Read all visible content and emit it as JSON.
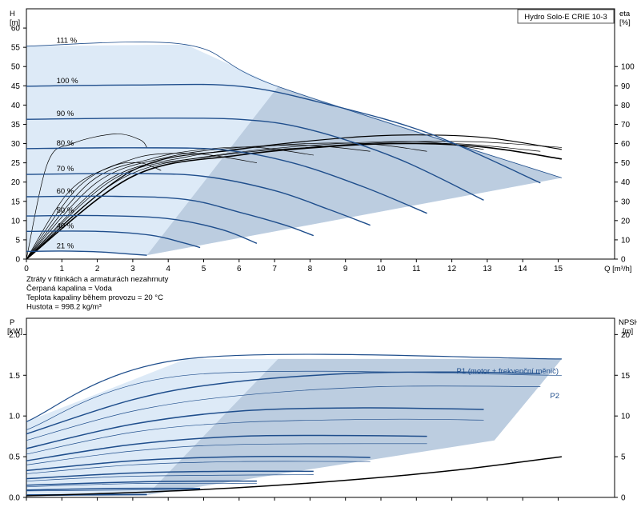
{
  "chart_data": [
    {
      "type": "line",
      "title": "Hydro Solo-E CRIE 10-3",
      "xlabel": "Q [m³/h]",
      "ylabel_left": {
        "line1": "H",
        "line2": "[m]"
      },
      "ylabel_right": {
        "line1": "eta",
        "line2": "[%]"
      },
      "xlim": [
        0,
        16
      ],
      "ylim": [
        0,
        65
      ],
      "ylim_right": [
        0,
        130
      ],
      "x_ticks": [
        0,
        1,
        2,
        3,
        4,
        5,
        6,
        7,
        8,
        9,
        10,
        11,
        12,
        13,
        14,
        15
      ],
      "y_ticks": [
        0,
        5,
        10,
        15,
        20,
        25,
        30,
        35,
        40,
        45,
        50,
        55,
        60
      ],
      "y_ticks_right": [
        0,
        10,
        20,
        30,
        40,
        50,
        60,
        70,
        80,
        90,
        100
      ],
      "speed_curves": [
        {
          "label": "111 %",
          "points": [
            [
              0,
              55.3
            ],
            [
              4.5,
              55.7
            ],
            [
              7.1,
              44.8
            ],
            [
              15.1,
              21.1
            ]
          ]
        },
        {
          "label": "100 %",
          "points": [
            [
              0,
              44.9
            ],
            [
              3,
              45.2
            ],
            [
              6,
              44.9
            ],
            [
              8.5,
              40.2
            ],
            [
              11.4,
              32.5
            ],
            [
              14.5,
              19.8
            ]
          ]
        },
        {
          "label": "90 %",
          "points": [
            [
              0,
              36.3
            ],
            [
              3,
              36.6
            ],
            [
              6,
              36.3
            ],
            [
              8,
              33.6
            ],
            [
              10.5,
              26
            ],
            [
              12.9,
              15.3
            ]
          ]
        },
        {
          "label": "80 %",
          "points": [
            [
              0,
              28.7
            ],
            [
              3,
              28.9
            ],
            [
              5.5,
              28.4
            ],
            [
              7.5,
              25
            ],
            [
              9.5,
              18.8
            ],
            [
              11.3,
              11.9
            ]
          ]
        },
        {
          "label": "70 %",
          "points": [
            [
              0,
              22
            ],
            [
              3,
              22.2
            ],
            [
              5,
              21.5
            ],
            [
              7,
              17.8
            ],
            [
              8.5,
              13
            ],
            [
              9.7,
              8.8
            ]
          ]
        },
        {
          "label": "60 %",
          "points": [
            [
              0,
              16.2
            ],
            [
              2.5,
              16.3
            ],
            [
              4.5,
              15.5
            ],
            [
              6,
              12.2
            ],
            [
              7.3,
              8.8
            ],
            [
              8.1,
              6.1
            ]
          ]
        },
        {
          "label": "50 %",
          "points": [
            [
              0,
              11.2
            ],
            [
              2,
              11.3
            ],
            [
              4,
              10.5
            ],
            [
              5.5,
              7.7
            ],
            [
              6.5,
              4.1
            ]
          ]
        },
        {
          "label": "40 %",
          "points": [
            [
              0,
              7.2
            ],
            [
              2,
              7.2
            ],
            [
              3.5,
              6.2
            ],
            [
              4.4,
              4.3
            ],
            [
              4.9,
              3
            ]
          ]
        },
        {
          "label": "21 %",
          "points": [
            [
              0,
              2
            ],
            [
              1,
              2.1
            ],
            [
              2,
              1.9
            ],
            [
              2.8,
              1.4
            ],
            [
              3.4,
              1
            ]
          ]
        }
      ],
      "efficiency_curves": [
        {
          "name": "eta 21 %",
          "points": [
            [
              0,
              0
            ],
            [
              0.6,
              50
            ],
            [
              1.3,
              60
            ],
            [
              2.5,
              65
            ],
            [
              3.2,
              62
            ],
            [
              3.4,
              58
            ]
          ]
        },
        {
          "name": "eta 40 %",
          "points": [
            [
              0,
              0
            ],
            [
              1.2,
              35
            ],
            [
              2.4,
              48
            ],
            [
              3.2,
              50
            ],
            [
              3.8,
              46
            ]
          ]
        },
        {
          "name": "eta 50 %",
          "points": [
            [
              0,
              0
            ],
            [
              1.5,
              38
            ],
            [
              3,
              52
            ],
            [
              4.2,
              55
            ],
            [
              5.2,
              54
            ],
            [
              6.5,
              50
            ]
          ]
        },
        {
          "name": "eta 60 %",
          "points": [
            [
              0,
              0
            ],
            [
              1.8,
              40
            ],
            [
              3.5,
              52
            ],
            [
              5,
              57
            ],
            [
              6.5,
              58
            ],
            [
              8.1,
              54
            ]
          ]
        },
        {
          "name": "eta 70 %",
          "points": [
            [
              0,
              0
            ],
            [
              2,
              40
            ],
            [
              4,
              53
            ],
            [
              6,
              58
            ],
            [
              8,
              59
            ],
            [
              9.7,
              56
            ]
          ]
        },
        {
          "name": "eta 80 %",
          "points": [
            [
              0,
              0
            ],
            [
              2.3,
              41
            ],
            [
              4.5,
              53
            ],
            [
              7,
              59
            ],
            [
              9.5,
              60
            ],
            [
              11.3,
              56
            ]
          ]
        },
        {
          "name": "eta 90 %",
          "points": [
            [
              0,
              0
            ],
            [
              2.5,
              42
            ],
            [
              5,
              53
            ],
            [
              8,
              59
            ],
            [
              11,
              61
            ],
            [
              12.9,
              57
            ]
          ]
        },
        {
          "name": "eta 100 %",
          "points": [
            [
              0,
              0
            ],
            [
              2.7,
              42
            ],
            [
              5.5,
              54
            ],
            [
              9,
              59
            ],
            [
              12,
              60
            ],
            [
              14.5,
              56
            ]
          ]
        },
        {
          "name": "eta 111 %",
          "points": [
            [
              0,
              0
            ],
            [
              3,
              43
            ],
            [
              6,
              54
            ],
            [
              9.5,
              60
            ],
            [
              12.5,
              61
            ],
            [
              15.1,
              58
            ]
          ]
        }
      ],
      "efficiency_max_curve": [
        [
          0,
          0
        ],
        [
          3,
          43
        ],
        [
          6,
          54
        ],
        [
          9,
          59
        ],
        [
          11,
          60
        ],
        [
          13,
          58
        ],
        [
          15.1,
          52
        ]
      ],
      "efficiency_top_curve": [
        [
          0,
          0
        ],
        [
          3,
          46
        ],
        [
          6,
          57
        ],
        [
          9,
          63
        ],
        [
          11,
          64.5
        ],
        [
          13,
          63
        ],
        [
          15.1,
          57
        ]
      ],
      "annotations": [
        "Ztráty v fitinkách a armaturách nezahrnuty",
        "Čerpaná kapalina = Voda",
        "Teplota kapaliny během provozu = 20 °C",
        "Hustota = 998.2 kg/m³"
      ]
    },
    {
      "type": "line",
      "title": "",
      "xlabel": "",
      "ylabel_left": {
        "line1": "P",
        "line2": "[kW]"
      },
      "ylabel_right": {
        "line1": "NPSH",
        "line2": "[m]"
      },
      "xlim": [
        0,
        16
      ],
      "ylim": [
        0,
        2.2
      ],
      "ylim_right": [
        0,
        22
      ],
      "y_ticks": [
        0,
        0.5,
        1.0,
        1.5,
        2.0
      ],
      "y_tick_labels": [
        "0.0",
        "0.5",
        "1.0",
        "1.5",
        "2.0"
      ],
      "y_ticks_right": [
        0,
        5,
        10,
        15,
        20
      ],
      "series_labels": [
        "P1 (motor + frekvenční měnič)",
        "P2"
      ],
      "p1_curves": [
        {
          "speed": "111 %",
          "points": [
            [
              0,
              0.93
            ],
            [
              4.5,
              1.7
            ],
            [
              15.1,
              1.7
            ]
          ]
        },
        {
          "speed": "100 %",
          "points": [
            [
              0,
              0.78
            ],
            [
              3,
              1.2
            ],
            [
              5.5,
              1.4
            ],
            [
              9,
              1.52
            ],
            [
              12,
              1.54
            ],
            [
              14.5,
              1.52
            ]
          ]
        },
        {
          "speed": "90 %",
          "points": [
            [
              0,
              0.6
            ],
            [
              3,
              0.9
            ],
            [
              6,
              1.06
            ],
            [
              9.5,
              1.1
            ],
            [
              12.9,
              1.08
            ]
          ]
        },
        {
          "speed": "80 %",
          "points": [
            [
              0,
              0.45
            ],
            [
              3,
              0.65
            ],
            [
              6,
              0.75
            ],
            [
              9,
              0.76
            ],
            [
              11.3,
              0.75
            ]
          ]
        },
        {
          "speed": "70 %",
          "points": [
            [
              0,
              0.33
            ],
            [
              3,
              0.45
            ],
            [
              6,
              0.5
            ],
            [
              8.5,
              0.5
            ],
            [
              9.7,
              0.49
            ]
          ]
        },
        {
          "speed": "60 %",
          "points": [
            [
              0,
              0.23
            ],
            [
              3,
              0.3
            ],
            [
              5.5,
              0.32
            ],
            [
              8.1,
              0.32
            ]
          ]
        },
        {
          "speed": "50 %",
          "points": [
            [
              0,
              0.15
            ],
            [
              3,
              0.19
            ],
            [
              5,
              0.2
            ],
            [
              6.5,
              0.2
            ]
          ]
        },
        {
          "speed": "40 %",
          "points": [
            [
              0,
              0.09
            ],
            [
              2.5,
              0.11
            ],
            [
              4.9,
              0.11
            ]
          ]
        },
        {
          "speed": "21 %",
          "points": [
            [
              0,
              0.03
            ],
            [
              2,
              0.035
            ],
            [
              3.4,
              0.035
            ]
          ]
        }
      ],
      "p2_curves": [
        {
          "speed": "111 %",
          "points": [
            [
              0,
              0.83
            ],
            [
              4.5,
              1.5
            ],
            [
              15.1,
              1.5
            ]
          ]
        },
        {
          "speed": "100 %",
          "points": [
            [
              0,
              0.7
            ],
            [
              3,
              1.06
            ],
            [
              6,
              1.25
            ],
            [
              10,
              1.36
            ],
            [
              14.5,
              1.36
            ]
          ]
        },
        {
          "speed": "90 %",
          "points": [
            [
              0,
              0.53
            ],
            [
              3,
              0.8
            ],
            [
              6,
              0.92
            ],
            [
              10,
              0.96
            ],
            [
              12.9,
              0.95
            ]
          ]
        },
        {
          "speed": "80 %",
          "points": [
            [
              0,
              0.4
            ],
            [
              3,
              0.57
            ],
            [
              6,
              0.65
            ],
            [
              11.3,
              0.66
            ]
          ]
        },
        {
          "speed": "70 %",
          "points": [
            [
              0,
              0.29
            ],
            [
              3,
              0.4
            ],
            [
              6,
              0.44
            ],
            [
              9.7,
              0.44
            ]
          ]
        },
        {
          "speed": "60 %",
          "points": [
            [
              0,
              0.2
            ],
            [
              3,
              0.26
            ],
            [
              8.1,
              0.28
            ]
          ]
        },
        {
          "speed": "50 %",
          "points": [
            [
              0,
              0.13
            ],
            [
              3,
              0.17
            ],
            [
              6.5,
              0.17
            ]
          ]
        },
        {
          "speed": "40 %",
          "points": [
            [
              0,
              0.08
            ],
            [
              4.9,
              0.1
            ]
          ]
        },
        {
          "speed": "21 %",
          "points": [
            [
              0,
              0.02
            ],
            [
              3.4,
              0.03
            ]
          ]
        }
      ],
      "npsh_curve": [
        [
          0,
          0.2
        ],
        [
          3,
          0.6
        ],
        [
          6,
          1.2
        ],
        [
          9,
          2.1
        ],
        [
          12,
          3.3
        ],
        [
          15.1,
          5.0
        ]
      ]
    }
  ],
  "colors": {
    "blue": "#1f4e8c",
    "light_fill": "#ddeaf7",
    "dark_fill": "#bccde0",
    "black": "#000000"
  }
}
